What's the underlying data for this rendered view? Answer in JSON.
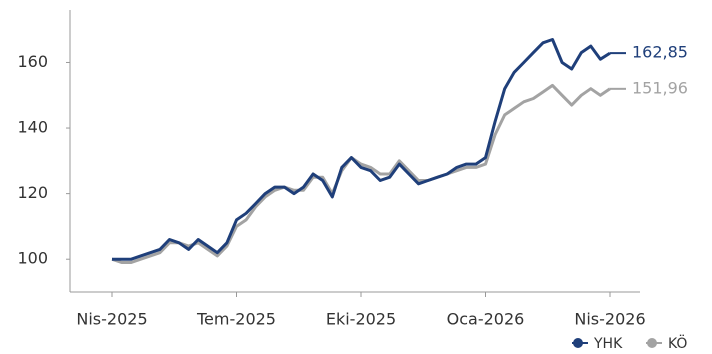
{
  "chart_data": {
    "type": "line",
    "categories": [
      "Nis-2025",
      null,
      null,
      null,
      null,
      null,
      null,
      null,
      null,
      null,
      null,
      null,
      null,
      "Tem-2025",
      null,
      null,
      null,
      null,
      null,
      null,
      null,
      null,
      null,
      null,
      null,
      null,
      "Eki-2025",
      null,
      null,
      null,
      null,
      null,
      null,
      null,
      null,
      null,
      null,
      null,
      null,
      "Oca-2026",
      null,
      null,
      null,
      null,
      null,
      null,
      null,
      null,
      null,
      null,
      null,
      null,
      "Nis-2026"
    ],
    "series": [
      {
        "name": "YHK",
        "color": "#1f3f7a",
        "end_label": "162,85",
        "values": [
          100,
          100,
          100,
          101,
          102,
          103,
          106,
          105,
          103,
          106,
          104,
          102,
          105,
          112,
          114,
          117,
          120,
          122,
          122,
          120,
          122,
          126,
          124,
          119,
          128,
          131,
          128,
          127,
          124,
          125,
          129,
          126,
          123,
          124,
          125,
          126,
          128,
          129,
          129,
          131,
          142,
          152,
          157,
          160,
          163,
          166,
          167,
          160,
          158,
          163,
          165,
          161,
          162.85
        ]
      },
      {
        "name": "KÖ",
        "color": "#a3a3a3",
        "end_label": "151,96",
        "values": [
          100,
          99,
          99,
          100,
          101,
          102,
          105,
          105,
          104,
          105,
          103,
          101,
          104,
          110,
          112,
          116,
          119,
          121,
          122,
          121,
          121,
          125,
          125,
          120,
          127,
          131,
          129,
          128,
          126,
          126,
          130,
          127,
          124,
          124,
          125,
          126,
          127,
          128,
          128,
          129,
          138,
          144,
          146,
          148,
          149,
          151,
          153,
          150,
          147,
          150,
          152,
          150,
          151.96
        ]
      }
    ],
    "ylim": [
      90,
      176
    ],
    "yticks": [
      100,
      120,
      140,
      160
    ],
    "legend": "bottom-right"
  }
}
